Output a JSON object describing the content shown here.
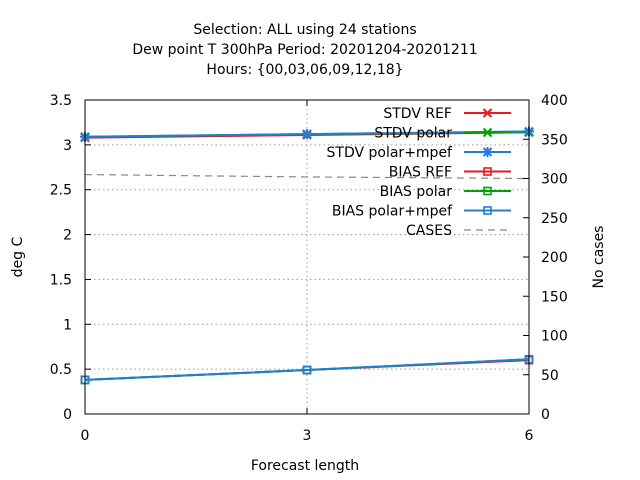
{
  "chart_data": {
    "type": "line",
    "title_lines": [
      "Selection: ALL using    24 stations",
      "Dew point T 300hPa   Period: 20201204-20201211",
      "Hours: {00,03,06,09,12,18}"
    ],
    "xlabel": "Forecast length",
    "ylabel": "deg C",
    "y2label": "No cases",
    "x": [
      0,
      3,
      6
    ],
    "xlim": [
      0,
      6
    ],
    "ylim": [
      0,
      3.5
    ],
    "y2lim": [
      0,
      400
    ],
    "x_ticks": [
      "0",
      "3",
      "6"
    ],
    "y_ticks": [
      "0",
      "0.5",
      "1",
      "1.5",
      "2",
      "2.5",
      "3",
      "3.5"
    ],
    "y2_ticks": [
      "0",
      "50",
      "100",
      "150",
      "200",
      "250",
      "300",
      "350",
      "400"
    ],
    "grid": true,
    "legend_position": "top-right",
    "series": [
      {
        "name": "STDV REF",
        "values": [
          3.08,
          3.11,
          3.14
        ],
        "color": "#e41a1c",
        "marker": "x"
      },
      {
        "name": "STDV polar",
        "values": [
          3.09,
          3.12,
          3.14
        ],
        "color": "#00a000",
        "marker": "x"
      },
      {
        "name": "STDV polar+mpef",
        "values": [
          3.09,
          3.12,
          3.15
        ],
        "color": "#1e7fd8",
        "marker": "star"
      },
      {
        "name": "BIAS REF",
        "values": [
          0.38,
          0.49,
          0.6
        ],
        "color": "#e41a1c",
        "marker": "square"
      },
      {
        "name": "BIAS polar",
        "values": [
          0.38,
          0.49,
          0.61
        ],
        "color": "#00a000",
        "marker": "square"
      },
      {
        "name": "BIAS polar+mpef",
        "values": [
          0.38,
          0.49,
          0.61
        ],
        "color": "#1e7fd8",
        "marker": "square"
      },
      {
        "name": "CASES",
        "axis": "y2",
        "values": [
          305,
          302,
          300
        ],
        "color": "#888888",
        "marker": "none",
        "dashed": true
      }
    ]
  }
}
